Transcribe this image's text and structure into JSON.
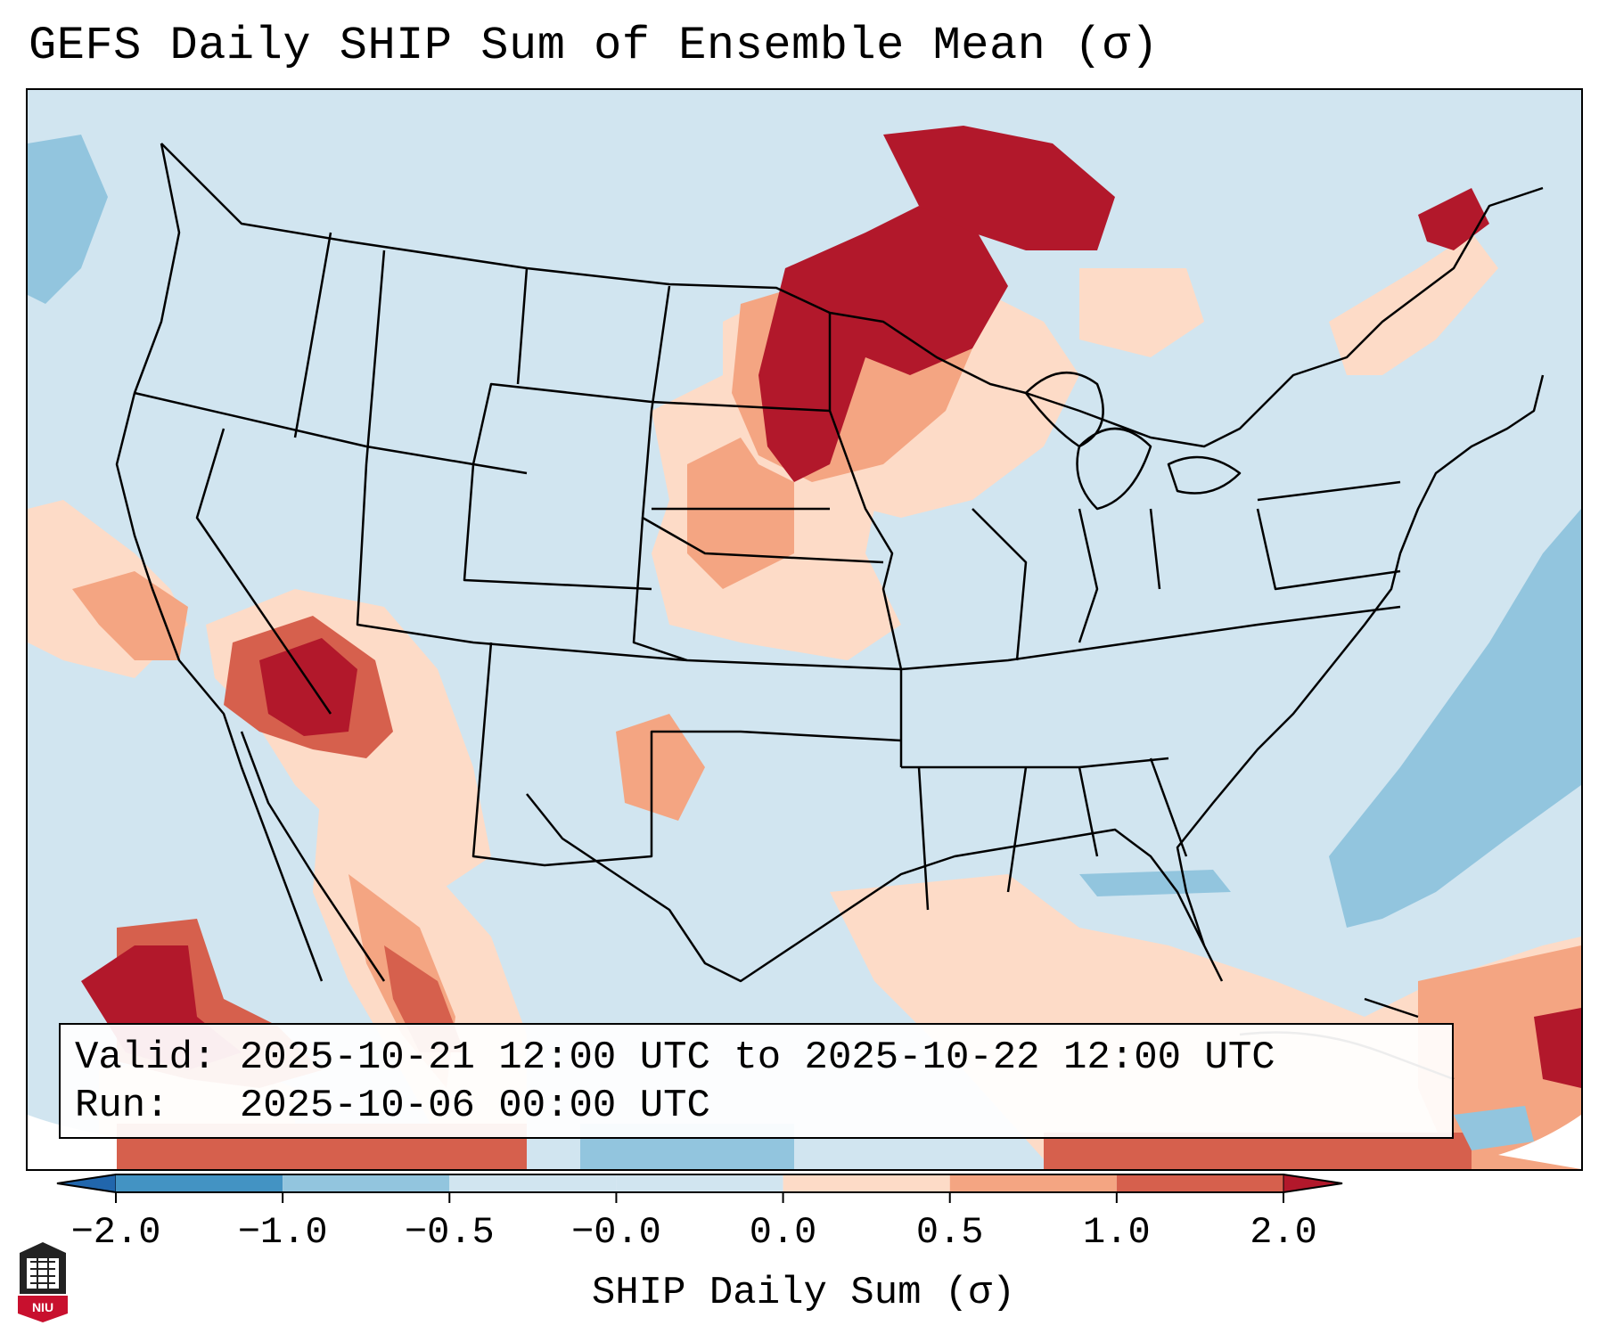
{
  "title": "GEFS Daily SHIP Sum of Ensemble Mean (σ)",
  "info": {
    "valid_label": "Valid:",
    "valid_value": "2025-10-21 12:00 UTC to 2025-10-22 12:00 UTC",
    "run_label": "Run:",
    "run_value": "2025-10-06 00:00 UTC"
  },
  "colorbar": {
    "label": "SHIP Daily Sum (σ)",
    "ticks": [
      "−2.0",
      "−1.0",
      "−0.5",
      "−0.0",
      "0.0",
      "0.5",
      "1.0",
      "2.0"
    ],
    "colors": [
      "#4393c3",
      "#92c5de",
      "#d1e5f0",
      "#d1e5f0",
      "#fddbc7",
      "#f4a582",
      "#d6604d",
      "#b2182b"
    ],
    "under_color": "#2166ac",
    "over_color": "#b2182b"
  },
  "map": {
    "background_color": "#d1e5f0",
    "anomaly_regions": [
      {
        "name": "upper-midwest-max",
        "level": 2.0
      },
      {
        "name": "arizona-max",
        "level": 2.0
      },
      {
        "name": "pacific-baja-max",
        "level": 2.0
      },
      {
        "name": "atlantic-negative",
        "level": -1.0
      },
      {
        "name": "caribbean-positive",
        "level": 1.0
      }
    ]
  },
  "logo": {
    "text": "NIU",
    "color": "#c8102e"
  }
}
